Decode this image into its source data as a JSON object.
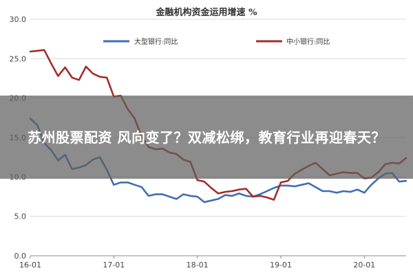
{
  "overlay": {
    "headline": "苏州股票配资 风向变了？双减松绑，教育行业再迎春天？"
  },
  "chart_data": {
    "type": "line",
    "title": "金融机构资金运用增速 %",
    "xlabel": "",
    "ylabel": "",
    "x_ticks": [
      "16-01",
      "17-01",
      "18-01",
      "19-01",
      "20-01"
    ],
    "x_range": [
      "2016-01",
      "2020-07"
    ],
    "ylim": [
      0,
      30
    ],
    "y_ticks": [
      "0.0",
      "5.0",
      "10.0",
      "15.0",
      "20.0",
      "25.0",
      "30.0"
    ],
    "grid": "horizontal",
    "legend_position": "top",
    "series": [
      {
        "name": "大型银行:同比",
        "color": "#3d6eb4",
        "points": [
          [
            "2016-01",
            17.4
          ],
          [
            "2016-02",
            16.6
          ],
          [
            "2016-03",
            14.3
          ],
          [
            "2016-04",
            13.4
          ],
          [
            "2016-05",
            12.1
          ],
          [
            "2016-06",
            12.8
          ],
          [
            "2016-07",
            11.0
          ],
          [
            "2016-08",
            11.2
          ],
          [
            "2016-09",
            11.5
          ],
          [
            "2016-10",
            12.2
          ],
          [
            "2016-11",
            12.5
          ],
          [
            "2016-12",
            10.9
          ],
          [
            "2017-01",
            9.0
          ],
          [
            "2017-02",
            9.3
          ],
          [
            "2017-03",
            9.3
          ],
          [
            "2017-04",
            9.0
          ],
          [
            "2017-05",
            8.7
          ],
          [
            "2017-06",
            7.6
          ],
          [
            "2017-07",
            7.8
          ],
          [
            "2017-08",
            7.8
          ],
          [
            "2017-09",
            7.5
          ],
          [
            "2017-10",
            7.2
          ],
          [
            "2017-11",
            7.8
          ],
          [
            "2017-12",
            7.6
          ],
          [
            "2018-01",
            7.5
          ],
          [
            "2018-02",
            6.8
          ],
          [
            "2018-03",
            7.0
          ],
          [
            "2018-04",
            7.2
          ],
          [
            "2018-05",
            7.7
          ],
          [
            "2018-06",
            7.6
          ],
          [
            "2018-07",
            7.9
          ],
          [
            "2018-08",
            7.6
          ],
          [
            "2018-09",
            7.5
          ],
          [
            "2018-10",
            7.8
          ],
          [
            "2018-11",
            8.2
          ],
          [
            "2018-12",
            8.6
          ],
          [
            "2019-01",
            8.9
          ],
          [
            "2019-02",
            8.9
          ],
          [
            "2019-03",
            8.8
          ],
          [
            "2019-04",
            9.0
          ],
          [
            "2019-05",
            9.2
          ],
          [
            "2019-06",
            8.7
          ],
          [
            "2019-07",
            8.2
          ],
          [
            "2019-08",
            8.2
          ],
          [
            "2019-09",
            8.0
          ],
          [
            "2019-10",
            8.2
          ],
          [
            "2019-11",
            8.1
          ],
          [
            "2019-12",
            8.4
          ],
          [
            "2020-01",
            8.0
          ],
          [
            "2020-02",
            9.0
          ],
          [
            "2020-03",
            9.8
          ],
          [
            "2020-04",
            10.4
          ],
          [
            "2020-05",
            10.5
          ],
          [
            "2020-06",
            9.4
          ],
          [
            "2020-07",
            9.5
          ]
        ]
      },
      {
        "name": "中小银行:同比",
        "color": "#a32c2c",
        "points": [
          [
            "2016-01",
            25.9
          ],
          [
            "2016-02",
            26.0
          ],
          [
            "2016-03",
            26.1
          ],
          [
            "2016-04",
            24.4
          ],
          [
            "2016-05",
            22.8
          ],
          [
            "2016-06",
            23.9
          ],
          [
            "2016-07",
            22.6
          ],
          [
            "2016-08",
            22.3
          ],
          [
            "2016-09",
            24.0
          ],
          [
            "2016-10",
            23.1
          ],
          [
            "2016-11",
            22.7
          ],
          [
            "2016-12",
            22.6
          ],
          [
            "2017-01",
            20.2
          ],
          [
            "2017-02",
            20.3
          ],
          [
            "2017-03",
            18.6
          ],
          [
            "2017-04",
            17.4
          ],
          [
            "2017-05",
            15.1
          ],
          [
            "2017-06",
            13.8
          ],
          [
            "2017-07",
            13.5
          ],
          [
            "2017-08",
            13.6
          ],
          [
            "2017-09",
            13.1
          ],
          [
            "2017-10",
            12.9
          ],
          [
            "2017-11",
            12.2
          ],
          [
            "2017-12",
            11.9
          ],
          [
            "2018-01",
            9.6
          ],
          [
            "2018-02",
            9.4
          ],
          [
            "2018-03",
            8.6
          ],
          [
            "2018-04",
            7.9
          ],
          [
            "2018-05",
            8.1
          ],
          [
            "2018-06",
            8.2
          ],
          [
            "2018-07",
            8.4
          ],
          [
            "2018-08",
            8.5
          ],
          [
            "2018-09",
            7.5
          ],
          [
            "2018-10",
            7.6
          ],
          [
            "2018-11",
            7.4
          ],
          [
            "2018-12",
            7.1
          ],
          [
            "2019-01",
            9.3
          ],
          [
            "2019-02",
            9.5
          ],
          [
            "2019-03",
            10.4
          ],
          [
            "2019-04",
            10.9
          ],
          [
            "2019-05",
            11.4
          ],
          [
            "2019-06",
            11.8
          ],
          [
            "2019-07",
            11.0
          ],
          [
            "2019-08",
            10.2
          ],
          [
            "2019-09",
            10.4
          ],
          [
            "2019-10",
            10.6
          ],
          [
            "2019-11",
            10.5
          ],
          [
            "2019-12",
            10.5
          ],
          [
            "2020-01",
            9.8
          ],
          [
            "2020-02",
            9.9
          ],
          [
            "2020-03",
            10.6
          ],
          [
            "2020-04",
            11.6
          ],
          [
            "2020-05",
            11.8
          ],
          [
            "2020-06",
            11.7
          ],
          [
            "2020-07",
            12.4
          ]
        ]
      }
    ]
  }
}
